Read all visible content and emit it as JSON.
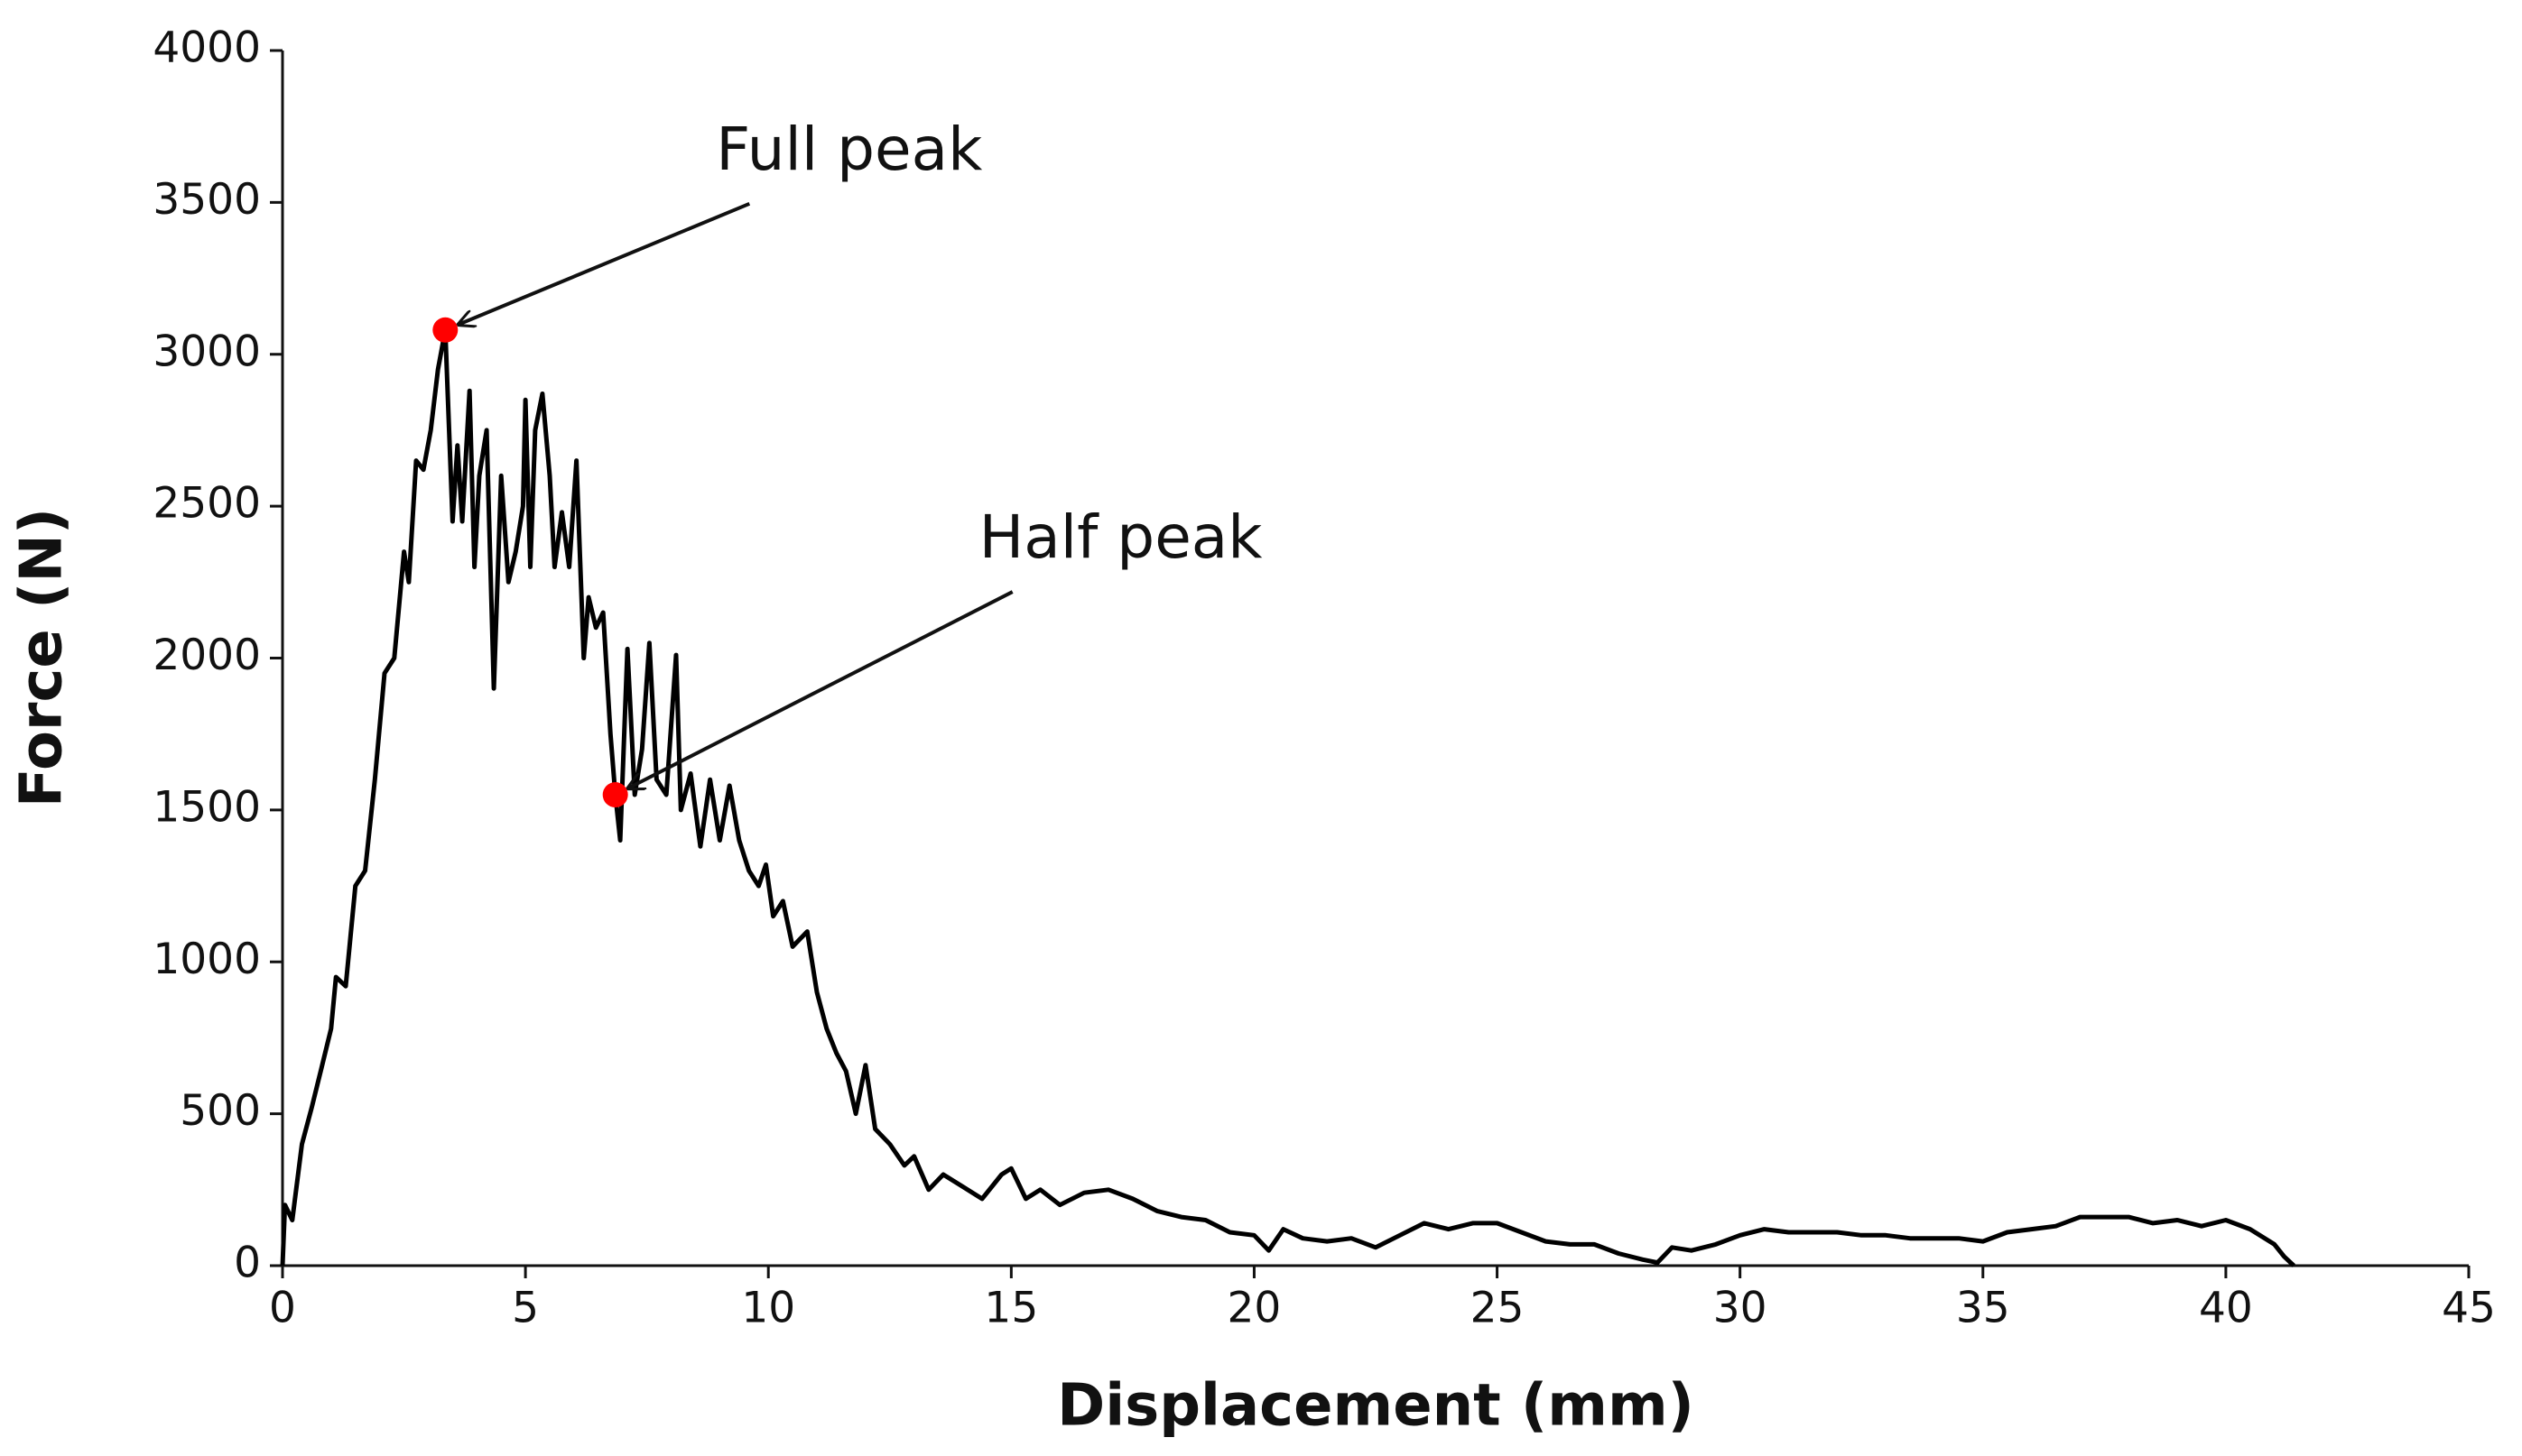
{
  "chart_data": {
    "type": "line",
    "xlabel": "Displacement (mm)",
    "ylabel": "Force (N)",
    "xlim": [
      0,
      45
    ],
    "ylim": [
      0,
      4000
    ],
    "xticks": [
      0,
      5,
      10,
      15,
      20,
      25,
      30,
      35,
      40,
      45
    ],
    "yticks": [
      0,
      500,
      1000,
      1500,
      2000,
      2500,
      3000,
      3500,
      4000
    ],
    "grid": false,
    "series": [
      {
        "color": "#000000",
        "x": [
          0,
          0.05,
          0.2,
          0.4,
          0.6,
          0.8,
          1.0,
          1.1,
          1.3,
          1.5,
          1.7,
          1.9,
          2.1,
          2.3,
          2.5,
          2.6,
          2.75,
          2.9,
          3.05,
          3.2,
          3.35,
          3.5,
          3.6,
          3.7,
          3.85,
          3.95,
          4.05,
          4.2,
          4.35,
          4.5,
          4.65,
          4.8,
          4.95,
          5.0,
          5.1,
          5.2,
          5.35,
          5.5,
          5.6,
          5.75,
          5.9,
          6.05,
          6.2,
          6.3,
          6.45,
          6.6,
          6.75,
          6.85,
          6.95,
          7.1,
          7.25,
          7.4,
          7.55,
          7.7,
          7.9,
          8.1,
          8.2,
          8.4,
          8.6,
          8.8,
          9.0,
          9.2,
          9.4,
          9.6,
          9.8,
          9.95,
          10.1,
          10.3,
          10.5,
          10.8,
          11.0,
          11.2,
          11.4,
          11.6,
          11.8,
          12.0,
          12.2,
          12.5,
          12.8,
          13.0,
          13.3,
          13.6,
          14.0,
          14.4,
          14.8,
          15.0,
          15.3,
          15.6,
          16.0,
          16.5,
          17.0,
          17.5,
          18.0,
          18.5,
          19.0,
          19.5,
          20.0,
          20.3,
          20.6,
          21.0,
          21.5,
          22.0,
          22.5,
          23.0,
          23.5,
          24.0,
          24.5,
          25.0,
          25.5,
          26.0,
          26.5,
          27.0,
          27.5,
          28.0,
          28.3,
          28.6,
          29.0,
          29.5,
          30.0,
          30.5,
          31.0,
          31.5,
          32.0,
          32.5,
          33.0,
          33.5,
          34.0,
          34.5,
          35.0,
          35.5,
          36.0,
          36.5,
          37.0,
          37.5,
          38.0,
          38.5,
          39.0,
          39.5,
          40.0,
          40.5,
          41.0,
          41.2,
          41.4
        ],
        "values": [
          0,
          200,
          150,
          400,
          520,
          650,
          780,
          950,
          920,
          1250,
          1300,
          1600,
          1950,
          2000,
          2350,
          2250,
          2650,
          2620,
          2750,
          2950,
          3080,
          2450,
          2700,
          2450,
          2880,
          2300,
          2600,
          2750,
          1900,
          2600,
          2250,
          2350,
          2500,
          2850,
          2300,
          2750,
          2870,
          2600,
          2300,
          2480,
          2300,
          2650,
          2000,
          2200,
          2100,
          2150,
          1750,
          1550,
          1400,
          2030,
          1550,
          1700,
          2050,
          1600,
          1550,
          2010,
          1500,
          1620,
          1380,
          1600,
          1400,
          1580,
          1400,
          1300,
          1250,
          1320,
          1150,
          1200,
          1050,
          1100,
          900,
          780,
          700,
          640,
          500,
          660,
          450,
          400,
          330,
          360,
          250,
          300,
          260,
          220,
          300,
          320,
          220,
          250,
          200,
          240,
          250,
          220,
          180,
          160,
          150,
          110,
          100,
          50,
          120,
          90,
          80,
          90,
          60,
          100,
          140,
          120,
          140,
          140,
          110,
          80,
          70,
          70,
          40,
          20,
          10,
          60,
          50,
          70,
          100,
          120,
          110,
          110,
          110,
          100,
          100,
          90,
          90,
          90,
          80,
          110,
          120,
          130,
          160,
          160,
          160,
          140,
          150,
          130,
          150,
          120,
          70,
          30,
          0
        ]
      }
    ],
    "annotations": [
      {
        "text": "Full peak",
        "x": 3.35,
        "y": 3080,
        "color": "#ff0000"
      },
      {
        "text": "Half peak",
        "x": 6.85,
        "y": 1550,
        "color": "#ff0000"
      }
    ]
  }
}
